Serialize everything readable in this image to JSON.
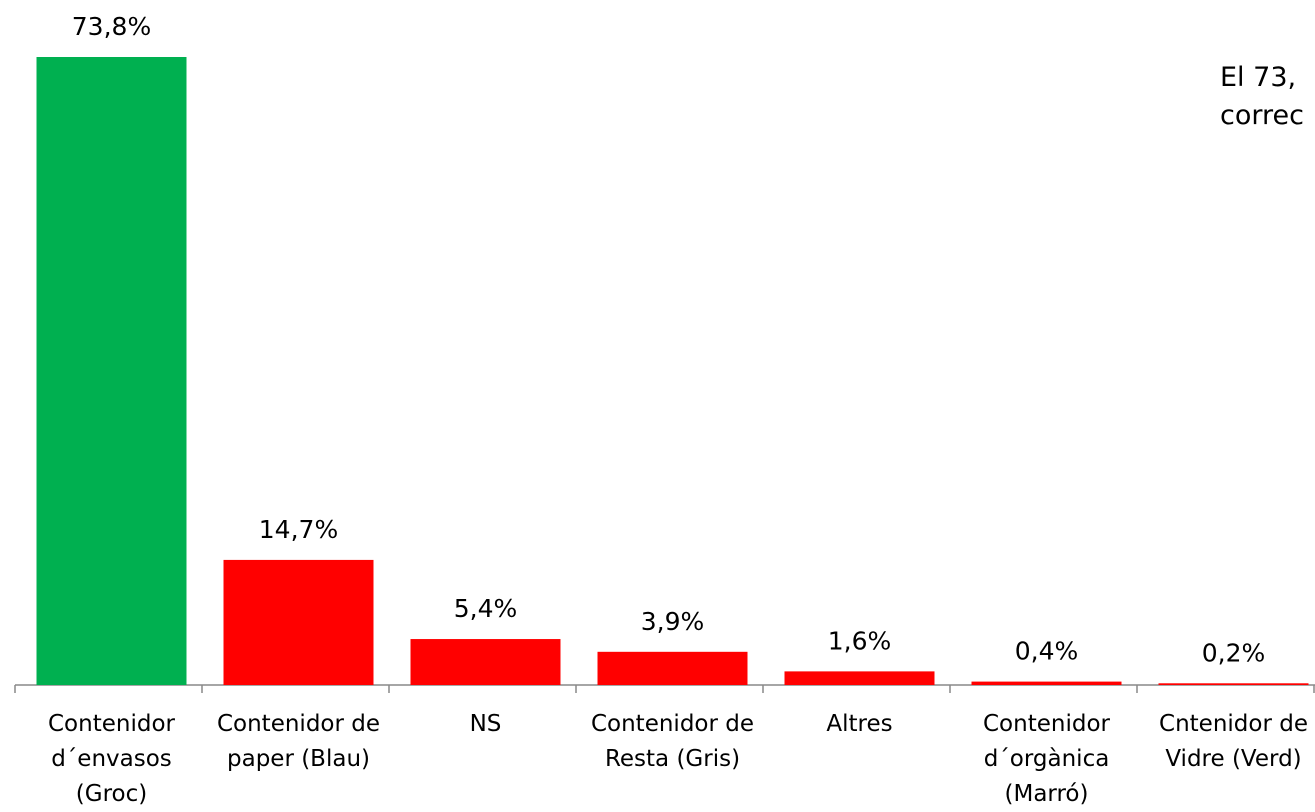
{
  "chart_data": {
    "type": "bar",
    "categories": [
      "Contenidor\nd´envasos\n(Groc)",
      "Contenidor de\npaper (Blau)",
      "NS",
      "Contenidor de\nResta (Gris)",
      "Altres",
      "Contenidor\nd´orgànica\n(Marró)",
      "Cntenidor de\nVidre (Verd)"
    ],
    "values": [
      73.8,
      14.7,
      5.4,
      3.9,
      1.6,
      0.4,
      0.2
    ],
    "value_labels": [
      "73,8%",
      "14,7%",
      "5,4%",
      "3,9%",
      "1,6%",
      "0,4%",
      "0,2%"
    ],
    "colors": [
      "#00b050",
      "#ff0000",
      "#ff0000",
      "#ff0000",
      "#ff0000",
      "#ff0000",
      "#ff0000"
    ],
    "annotation": [
      "El 73,",
      "correc"
    ]
  }
}
